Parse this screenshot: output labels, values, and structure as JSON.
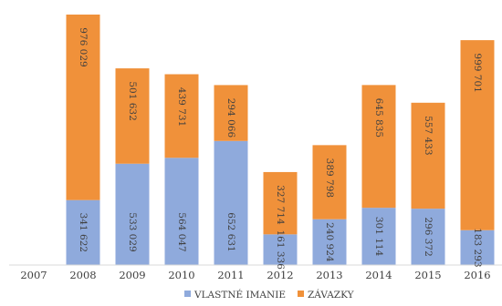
{
  "chart_data": {
    "type": "bar",
    "stacked": true,
    "title": "",
    "xlabel": "",
    "ylabel": "",
    "categories": [
      "2007",
      "2008",
      "2009",
      "2010",
      "2011",
      "2012",
      "2013",
      "2014",
      "2015",
      "2016"
    ],
    "series": [
      {
        "name": "VLASTNÉ IMANIE",
        "color": "#8FAADC",
        "values": [
          0,
          341622,
          533029,
          564047,
          652631,
          161336,
          240924,
          301114,
          296372,
          183293
        ],
        "labels": [
          "",
          "341 622",
          "533 029",
          "564 047",
          "652 631",
          "161 336",
          "240 924",
          "301 114",
          "296 372",
          "183 293"
        ]
      },
      {
        "name": "ZÁVAZKY",
        "color": "#F0913A",
        "values": [
          0,
          976029,
          501632,
          439731,
          294066,
          327714,
          389798,
          645835,
          557433,
          999701
        ],
        "labels": [
          "",
          "976 029",
          "501 632",
          "439 731",
          "294 066",
          "327 714",
          "389 798",
          "645 835",
          "557 433",
          "999 701"
        ]
      }
    ],
    "ylim": [
      0,
      1325000
    ],
    "grid": false,
    "legend": "bottom"
  }
}
